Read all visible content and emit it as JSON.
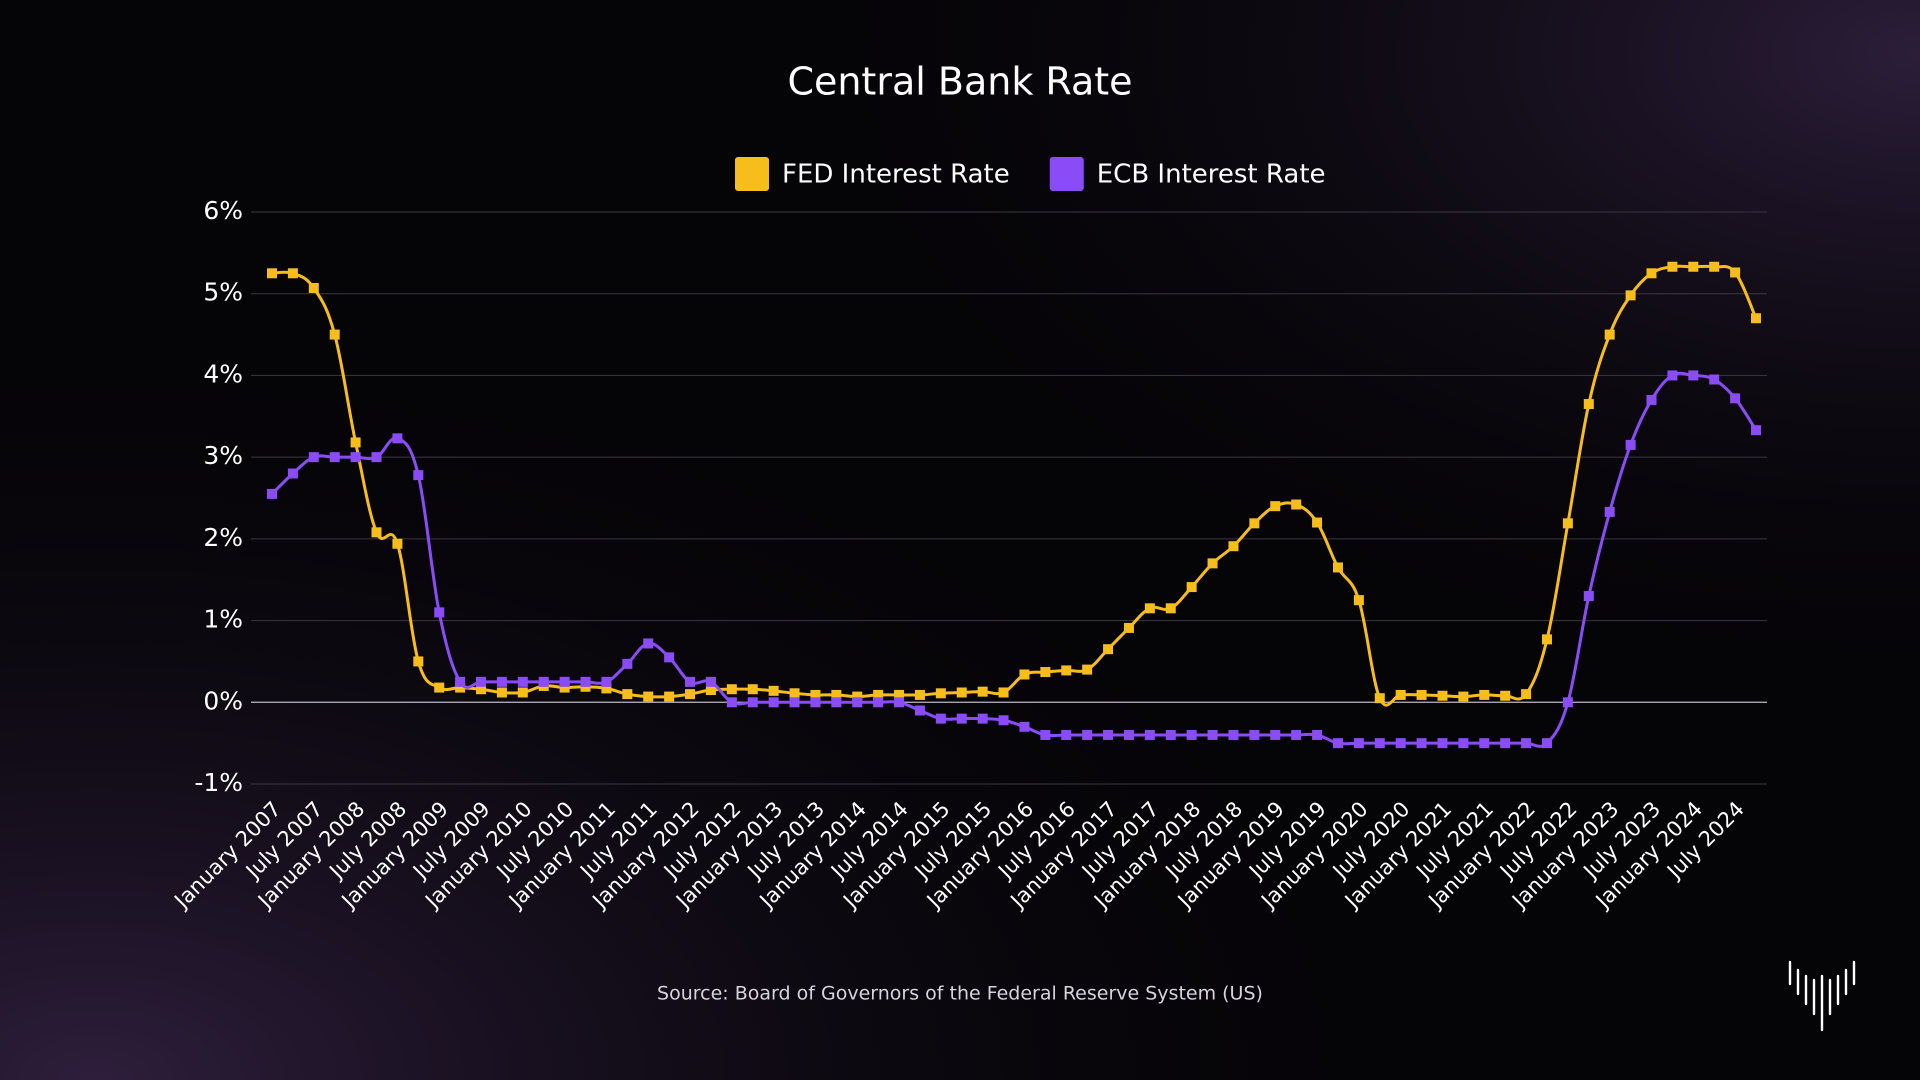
{
  "chart_data": {
    "type": "line",
    "title": "Central Bank Rate",
    "source": "Source: Board of Governors of the Federal Reserve System (US)",
    "categories": [
      "January 2007",
      null,
      "July 2007",
      null,
      "January 2008",
      null,
      "July 2008",
      null,
      "January 2009",
      null,
      "July 2009",
      null,
      "January 2010",
      null,
      "July 2010",
      null,
      "January 2011",
      null,
      "July 2011",
      null,
      "January 2012",
      null,
      "July 2012",
      null,
      "January 2013",
      null,
      "July 2013",
      null,
      "January 2014",
      null,
      "July 2014",
      null,
      "January 2015",
      null,
      "July 2015",
      null,
      "January 2016",
      null,
      "July 2016",
      null,
      "January 2017",
      null,
      "July 2017",
      null,
      "January 2018",
      null,
      "July 2018",
      null,
      "January 2019",
      null,
      "July 2019",
      null,
      "January 2020",
      null,
      "July 2020",
      null,
      "January 2021",
      null,
      "July 2021",
      null,
      "January 2022",
      null,
      "July 2022",
      null,
      "January 2023",
      null,
      "July 2023",
      null,
      "January 2024",
      null,
      "July 2024",
      null
    ],
    "series": [
      {
        "name": "FED Interest Rate",
        "color": "#f7bd1b",
        "values": [
          5.25,
          5.25,
          5.07,
          4.5,
          3.18,
          2.08,
          1.94,
          0.5,
          0.18,
          0.18,
          0.16,
          0.12,
          0.12,
          0.2,
          0.18,
          0.19,
          0.17,
          0.1,
          0.07,
          0.07,
          0.1,
          0.15,
          0.16,
          0.16,
          0.14,
          0.11,
          0.09,
          0.09,
          0.07,
          0.09,
          0.09,
          0.09,
          0.11,
          0.12,
          0.13,
          0.12,
          0.34,
          0.37,
          0.39,
          0.4,
          0.65,
          0.91,
          1.15,
          1.15,
          1.41,
          1.7,
          1.91,
          2.19,
          2.4,
          2.42,
          2.2,
          1.65,
          1.25,
          0.05,
          0.09,
          0.09,
          0.08,
          0.07,
          0.09,
          0.08,
          0.1,
          0.77,
          2.19,
          3.65,
          4.5,
          4.98,
          5.25,
          5.33,
          5.33,
          5.33,
          5.26,
          4.7
        ]
      },
      {
        "name": "ECB Interest Rate",
        "color": "#8a4cf6",
        "values": [
          2.55,
          2.8,
          3.0,
          3.0,
          3.0,
          3.0,
          3.23,
          2.78,
          1.1,
          0.25,
          0.25,
          0.25,
          0.25,
          0.25,
          0.25,
          0.25,
          0.25,
          0.47,
          0.72,
          0.55,
          0.25,
          0.25,
          0.0,
          0.0,
          0.0,
          0.0,
          0.0,
          0.0,
          0.0,
          0.0,
          0.0,
          -0.1,
          -0.2,
          -0.2,
          -0.2,
          -0.22,
          -0.3,
          -0.4,
          -0.4,
          -0.4,
          -0.4,
          -0.4,
          -0.4,
          -0.4,
          -0.4,
          -0.4,
          -0.4,
          -0.4,
          -0.4,
          -0.4,
          -0.4,
          -0.5,
          -0.5,
          -0.5,
          -0.5,
          -0.5,
          -0.5,
          -0.5,
          -0.5,
          -0.5,
          -0.5,
          -0.5,
          0.0,
          1.3,
          2.33,
          3.15,
          3.7,
          4.0,
          4.0,
          3.95,
          3.72,
          3.33
        ]
      }
    ],
    "ylim": [
      -1,
      6
    ],
    "yticks": [
      {
        "value": -1,
        "label": "-1%"
      },
      {
        "value": 0,
        "label": "0%"
      },
      {
        "value": 1,
        "label": "1%"
      },
      {
        "value": 2,
        "label": "2%"
      },
      {
        "value": 3,
        "label": "3%"
      },
      {
        "value": 4,
        "label": "4%"
      },
      {
        "value": 5,
        "label": "5%"
      },
      {
        "value": 6,
        "label": "6%"
      }
    ],
    "grid": true,
    "legend": "top"
  }
}
